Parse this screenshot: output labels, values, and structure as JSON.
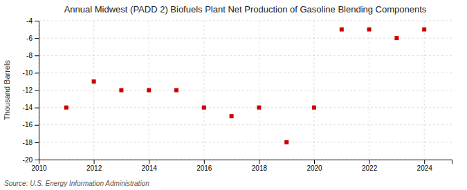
{
  "chart_data": {
    "type": "scatter",
    "title": "Annual Midwest (PADD 2) Biofuels Plant Net Production of Gasoline Blending Components",
    "ylabel": "Thousand Barrels",
    "source": "Source: U.S. Energy Information Administration",
    "x": [
      2011,
      2012,
      2013,
      2014,
      2015,
      2016,
      2017,
      2018,
      2019,
      2020,
      2021,
      2022,
      2023,
      2024
    ],
    "values": [
      -14,
      -11,
      -12,
      -12,
      -12,
      -14,
      -15,
      -14,
      -18,
      -14,
      -5,
      -5,
      -6,
      -5
    ],
    "color": "#cc0000",
    "marker": "square",
    "xlim": [
      2010,
      2025
    ],
    "xticks": [
      2010,
      2012,
      2014,
      2016,
      2018,
      2020,
      2022,
      2024
    ],
    "ylim": [
      -20,
      -4
    ],
    "yticks": [
      -4,
      -6,
      -8,
      -10,
      -12,
      -14,
      -16,
      -18,
      -20
    ],
    "grid": true
  }
}
